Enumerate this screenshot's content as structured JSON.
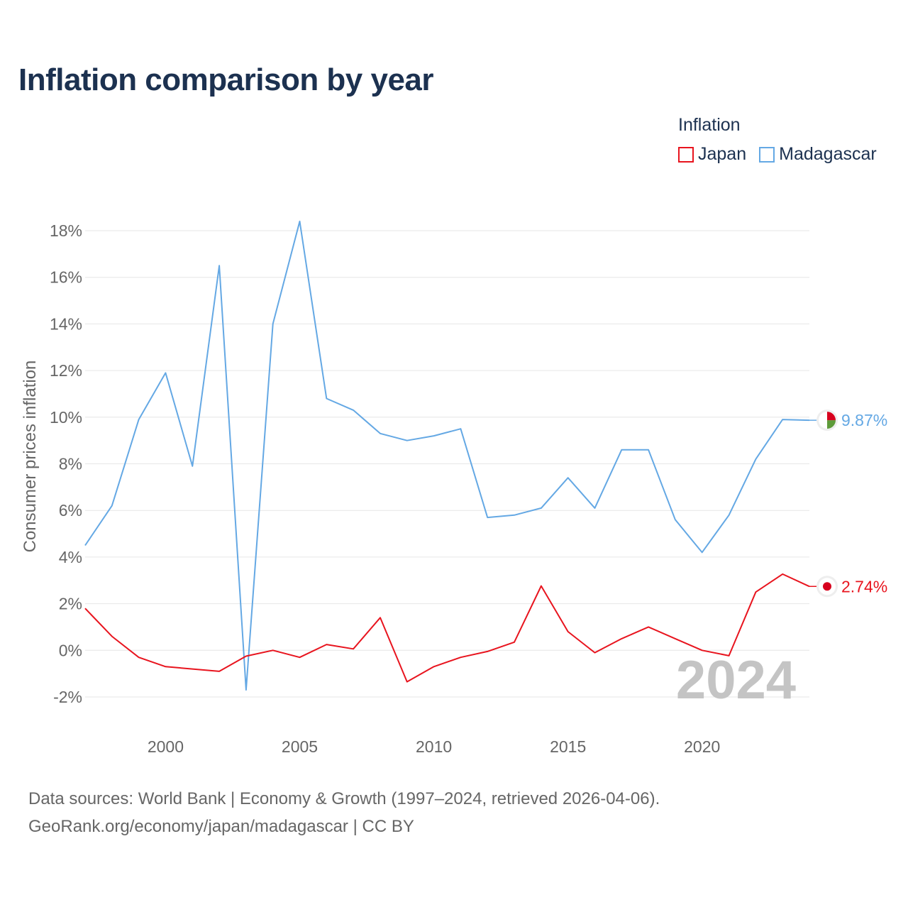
{
  "title": "Inflation comparison by year",
  "legend": {
    "title": "Inflation",
    "items": [
      {
        "name": "Japan",
        "color": "#e8141e"
      },
      {
        "name": "Madagascar",
        "color": "#64a8e4"
      }
    ]
  },
  "source": {
    "line1": "Data sources: World Bank | Economy & Growth (1997–2024, retrieved 2026-04-06).",
    "line2": "GeoRank.org/economy/japan/madagascar | CC BY"
  },
  "colors": {
    "japan": "#e8141e",
    "madagascar": "#64a8e4",
    "grid": "#e6e6e6",
    "tick": "#666666",
    "watermark": "#c4c4c4"
  },
  "chart_data": {
    "type": "line",
    "title": "Inflation comparison by year",
    "xlabel": "",
    "ylabel": "Consumer prices inflation",
    "xlim": [
      1997,
      2024
    ],
    "ylim": [
      -3,
      19
    ],
    "x_ticks": [
      2000,
      2005,
      2010,
      2015,
      2020
    ],
    "y_ticks": [
      -2,
      0,
      2,
      4,
      6,
      8,
      10,
      12,
      14,
      16,
      18
    ],
    "y_tick_suffix": "%",
    "grid": true,
    "legend_position": "top-right",
    "year_watermark": "2024",
    "x": [
      1997,
      1998,
      1999,
      2000,
      2001,
      2002,
      2003,
      2004,
      2005,
      2006,
      2007,
      2008,
      2009,
      2010,
      2011,
      2012,
      2013,
      2014,
      2015,
      2016,
      2017,
      2018,
      2019,
      2020,
      2021,
      2022,
      2023,
      2024
    ],
    "series": [
      {
        "name": "Madagascar",
        "color": "#64a8e4",
        "end_label": "9.87%",
        "values": [
          4.5,
          6.2,
          9.9,
          11.9,
          7.9,
          16.5,
          -1.7,
          14.0,
          18.4,
          10.8,
          10.3,
          9.3,
          9.0,
          9.2,
          9.5,
          5.7,
          5.8,
          6.1,
          7.4,
          6.1,
          8.6,
          8.6,
          5.6,
          4.2,
          5.8,
          8.2,
          9.9,
          9.87
        ]
      },
      {
        "name": "Japan",
        "color": "#e8141e",
        "end_label": "2.74%",
        "values": [
          1.8,
          0.6,
          -0.3,
          -0.7,
          -0.8,
          -0.9,
          -0.25,
          0.0,
          -0.3,
          0.25,
          0.06,
          1.4,
          -1.35,
          -0.7,
          -0.3,
          -0.05,
          0.35,
          2.76,
          0.8,
          -0.1,
          0.5,
          1.0,
          0.5,
          0.0,
          -0.23,
          2.5,
          3.27,
          2.74
        ]
      }
    ]
  }
}
